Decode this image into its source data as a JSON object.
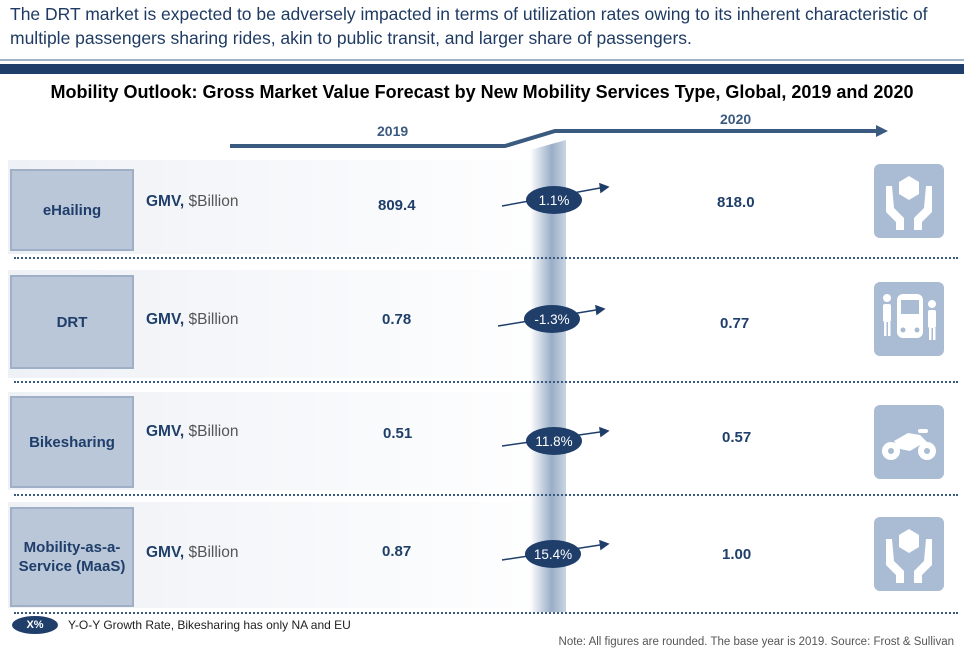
{
  "intro_text": "The DRT market is expected to be adversely impacted in terms of utilization rates owing to its inherent characteristic of multiple passengers sharing rides, akin to public transit, and larger share of passengers.",
  "chart_data": {
    "type": "table",
    "title": "Mobility Outlook: Gross Market Value Forecast by New Mobility Services Type, Global, 2019 and 2020",
    "years": [
      "2019",
      "2020"
    ],
    "metric_bold": "GMV,",
    "metric_unit": "$Billion",
    "rows": [
      {
        "label": "eHailing",
        "v2019": "809.4",
        "growth": "1.1%",
        "v2020": "818.0",
        "icon": "hands-holding-box-icon"
      },
      {
        "label": "DRT",
        "v2019": "0.78",
        "growth": "-1.3%",
        "v2020": "0.77",
        "icon": "bus-passengers-icon"
      },
      {
        "label": "Bikesharing",
        "v2019": "0.51",
        "growth": "11.8%",
        "v2020": "0.57",
        "icon": "motorbike-icon"
      },
      {
        "label": "Mobility-as-a-Service (MaaS)",
        "v2019": "0.87",
        "growth": "15.4%",
        "v2020": "1.00",
        "icon": "hands-holding-box-icon"
      }
    ]
  },
  "legend": {
    "pill": "X%",
    "text": "Y-O-Y Growth Rate, Bikesharing has only NA and EU"
  },
  "note": "Note: All figures are rounded. The base year is 2019. Source: Frost & Sullivan",
  "colors": {
    "navy": "#1f3e6a",
    "label_fill": "#b9c7d8",
    "icon_fill": "#a9bcd3"
  }
}
